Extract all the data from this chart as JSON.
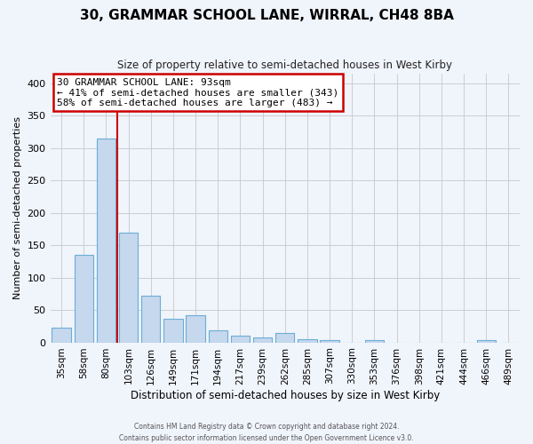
{
  "title": "30, GRAMMAR SCHOOL LANE, WIRRAL, CH48 8BA",
  "subtitle": "Size of property relative to semi-detached houses in West Kirby",
  "xlabel": "Distribution of semi-detached houses by size in West Kirby",
  "ylabel": "Number of semi-detached properties",
  "bar_color": "#c5d8ed",
  "bar_edge_color": "#6aaed6",
  "bg_color": "#f0f4fb",
  "grid_color": "#c8c8c8",
  "categories": [
    "35sqm",
    "58sqm",
    "80sqm",
    "103sqm",
    "126sqm",
    "149sqm",
    "171sqm",
    "194sqm",
    "217sqm",
    "239sqm",
    "262sqm",
    "285sqm",
    "307sqm",
    "330sqm",
    "353sqm",
    "376sqm",
    "398sqm",
    "421sqm",
    "444sqm",
    "466sqm",
    "489sqm"
  ],
  "values": [
    23,
    135,
    315,
    170,
    72,
    37,
    42,
    19,
    11,
    7,
    14,
    5,
    4,
    0,
    3,
    0,
    0,
    0,
    0,
    4,
    0
  ],
  "ylim": [
    0,
    415
  ],
  "yticks": [
    0,
    50,
    100,
    150,
    200,
    250,
    300,
    350,
    400
  ],
  "vline_color": "#cc0000",
  "vline_pos": 2.5,
  "annotation_title": "30 GRAMMAR SCHOOL LANE: 93sqm",
  "annotation_line1": "← 41% of semi-detached houses are smaller (343)",
  "annotation_line2": "58% of semi-detached houses are larger (483) →",
  "annotation_box_color": "#ffffff",
  "annotation_box_edge": "#cc0000",
  "footer1": "Contains HM Land Registry data © Crown copyright and database right 2024.",
  "footer2": "Contains public sector information licensed under the Open Government Licence v3.0."
}
